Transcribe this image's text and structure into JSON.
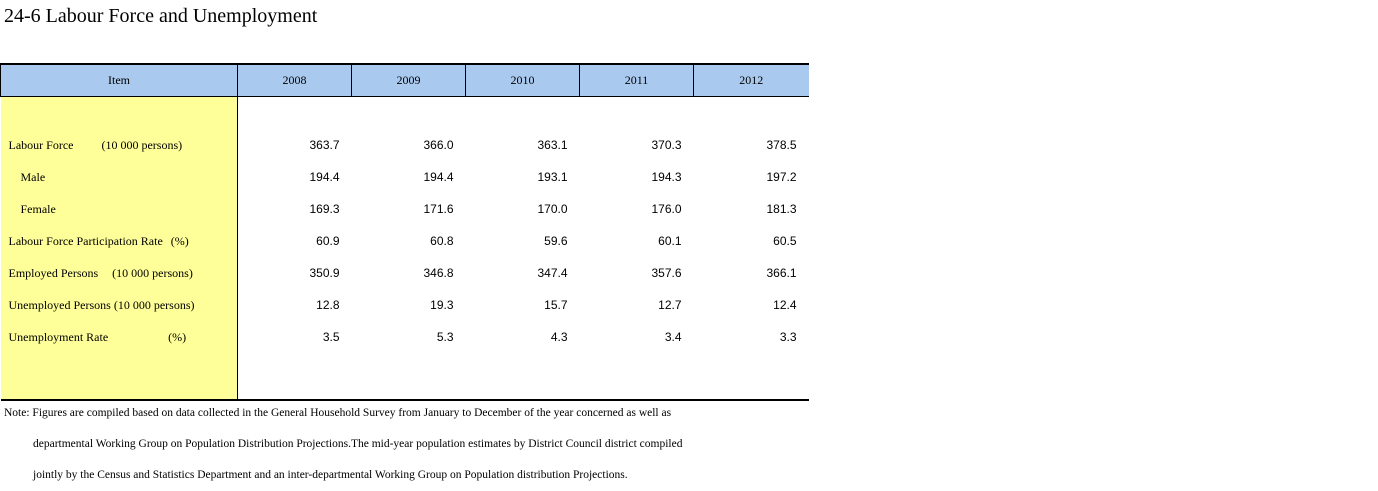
{
  "title": "24-6 Labour Force and Unemployment",
  "table": {
    "header": {
      "item": "Item",
      "years": [
        "2008",
        "2009",
        "2010",
        "2011",
        "2012"
      ]
    },
    "rows": [
      {
        "label": "Labour Force",
        "unit": "(10 000 persons)",
        "values": [
          "363.7",
          "366.0",
          "363.1",
          "370.3",
          "378.5"
        ]
      },
      {
        "label": "Male",
        "unit": "",
        "values": [
          "194.4",
          "194.4",
          "193.1",
          "194.3",
          "197.2"
        ]
      },
      {
        "label": "Female",
        "unit": "",
        "values": [
          "169.3",
          "171.6",
          "170.0",
          "176.0",
          "181.3"
        ]
      },
      {
        "label": "Labour Force Participation Rate",
        "unit": "(%)",
        "values": [
          "60.9",
          "60.8",
          "59.6",
          "60.1",
          "60.5"
        ]
      },
      {
        "label": "Employed Persons",
        "unit": "(10 000 persons)",
        "values": [
          "350.9",
          "346.8",
          "347.4",
          "357.6",
          "366.1"
        ]
      },
      {
        "label": "Unemployed Persons",
        "unit": "(10 000 persons)",
        "values": [
          "12.8",
          "19.3",
          "15.7",
          "12.7",
          "12.4"
        ]
      },
      {
        "label": "Unemployment Rate",
        "unit": "(%)",
        "values": [
          "3.5",
          "5.3",
          "4.3",
          "3.4",
          "3.3"
        ]
      }
    ]
  },
  "note": {
    "line1": "Note: Figures are compiled based on data collected in the General Household Survey from January to December of the year concerned as well as",
    "line2": "departmental Working Group on Population Distribution Projections.The mid-year population estimates by District Council district compiled",
    "line3": "jointly by the Census and Statistics Department and an inter-departmental Working Group on Population distribution Projections."
  }
}
